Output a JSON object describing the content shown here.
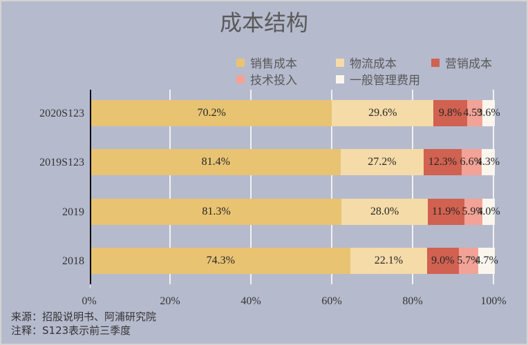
{
  "chart_data": {
    "type": "bar",
    "orientation": "horizontal",
    "stacked": "percent",
    "title": "成本结构",
    "categories": [
      "2020S123",
      "2019S123",
      "2019",
      "2018"
    ],
    "series": [
      {
        "name": "销售成本",
        "color": "#e8c372",
        "values": [
          70.2,
          81.4,
          81.3,
          74.3
        ]
      },
      {
        "name": "物流成本",
        "color": "#f5dba8",
        "values": [
          29.6,
          27.2,
          28.0,
          22.1
        ]
      },
      {
        "name": "营销成本",
        "color": "#d16150",
        "values": [
          9.8,
          12.3,
          11.9,
          9.0
        ]
      },
      {
        "name": "技术投入",
        "color": "#f2a296",
        "values": [
          4.5,
          6.6,
          5.9,
          5.7
        ]
      },
      {
        "name": "一般管理费用",
        "color": "#faf6ee",
        "values": [
          3.6,
          4.3,
          4.0,
          4.7
        ]
      }
    ],
    "data_labels": [
      [
        "70.2%",
        "29.6%",
        "9.8%",
        "4.5%",
        "3.6%"
      ],
      [
        "81.4%",
        "27.2%",
        "12.3%",
        "6.6%",
        "4.3%"
      ],
      [
        "81.3%",
        "28.0%",
        "11.9%",
        "5.9%",
        "4.0%"
      ],
      [
        "74.3%",
        "22.1%",
        "9.0%",
        "5.7%",
        "4.7%"
      ]
    ],
    "xticks": [
      "0%",
      "20%",
      "40%",
      "60%",
      "80%",
      "100%"
    ],
    "xlim": [
      0,
      100
    ],
    "xlabel": "",
    "ylabel": "",
    "grid": "vertical",
    "legend_position": "top-right"
  },
  "title": "成本结构",
  "legend": [
    {
      "label": "销售成本",
      "color": "#e8c372"
    },
    {
      "label": "物流成本",
      "color": "#f5dba8"
    },
    {
      "label": "营销成本",
      "color": "#d16150"
    },
    {
      "label": "技术投入",
      "color": "#f2a296"
    },
    {
      "label": "一般管理费用",
      "color": "#faf6ee"
    }
  ],
  "categories": [
    "2020S123",
    "2019S123",
    "2019",
    "2018"
  ],
  "xticks": [
    "0%",
    "20%",
    "40%",
    "60%",
    "80%",
    "100%"
  ],
  "footnotes": {
    "source": "来源：招股说明书、阿浦研究院",
    "note": "注释：S123表示前三季度"
  }
}
